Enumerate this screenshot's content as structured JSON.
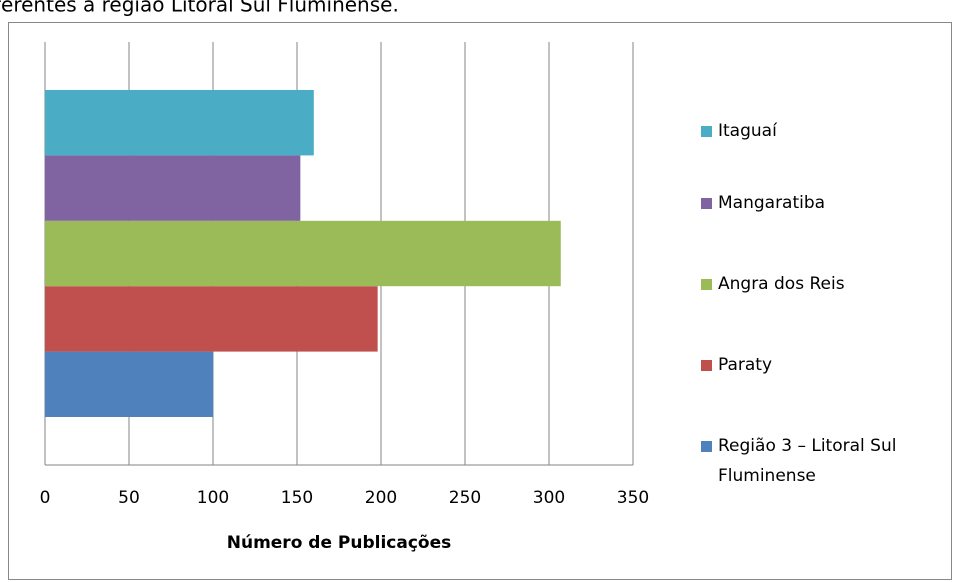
{
  "caption": "ferentes à região Litoral Sul Fluminense.",
  "chart_data": {
    "type": "bar",
    "orientation": "horizontal",
    "xlabel": "Número de Publicações",
    "series": [
      {
        "name": "Região 3 – Litoral Sul Fluminense",
        "color": "#4f81bd",
        "values": [
          100
        ]
      },
      {
        "name": "Paraty",
        "color": "#c0504d",
        "values": [
          198
        ]
      },
      {
        "name": "Angra dos Reis",
        "color": "#9bbb59",
        "values": [
          307
        ]
      },
      {
        "name": "Mangaratiba",
        "color": "#8064a2",
        "values": [
          152
        ]
      },
      {
        "name": "Itaguaí",
        "color": "#4bacc6",
        "values": [
          160
        ]
      }
    ],
    "xlim": [
      0,
      350
    ],
    "xticks": [
      0,
      50,
      100,
      150,
      200,
      250,
      300,
      350
    ],
    "grid": true,
    "legend": "right"
  }
}
